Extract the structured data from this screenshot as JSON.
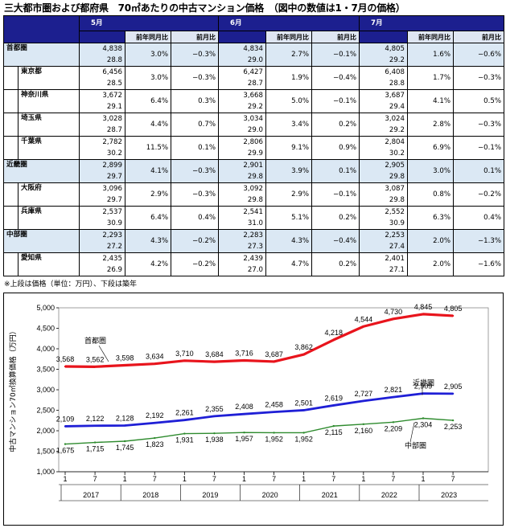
{
  "title": "三大都市圏および都府県　70㎡あたりの中古マンション価格　（図中の数値は1・7月の価格）",
  "note": "※上段は価格（単位：万円）、下段は築年",
  "table": {
    "months": [
      "5月",
      "6月",
      "7月"
    ],
    "subheaders": [
      "前年同月比",
      "前月比"
    ],
    "rows": [
      {
        "name": "首都圏",
        "group": true,
        "cells": [
          {
            "price": "4,838",
            "age": "28.8",
            "yoy": "3.0%",
            "mom": "−0.3%"
          },
          {
            "price": "4,834",
            "age": "29.0",
            "yoy": "2.7%",
            "mom": "−0.1%"
          },
          {
            "price": "4,805",
            "age": "29.2",
            "yoy": "1.6%",
            "mom": "−0.6%"
          }
        ]
      },
      {
        "name": "東京都",
        "group": false,
        "cells": [
          {
            "price": "6,456",
            "age": "28.5",
            "yoy": "3.0%",
            "mom": "−0.3%"
          },
          {
            "price": "6,427",
            "age": "28.7",
            "yoy": "1.9%",
            "mom": "−0.4%"
          },
          {
            "price": "6,408",
            "age": "28.8",
            "yoy": "1.7%",
            "mom": "−0.3%"
          }
        ]
      },
      {
        "name": "神奈川県",
        "group": false,
        "cells": [
          {
            "price": "3,672",
            "age": "29.1",
            "yoy": "6.4%",
            "mom": "0.3%"
          },
          {
            "price": "3,668",
            "age": "29.2",
            "yoy": "5.0%",
            "mom": "−0.1%"
          },
          {
            "price": "3,687",
            "age": "29.4",
            "yoy": "4.1%",
            "mom": "0.5%"
          }
        ]
      },
      {
        "name": "埼玉県",
        "group": false,
        "cells": [
          {
            "price": "3,028",
            "age": "28.7",
            "yoy": "4.4%",
            "mom": "0.7%"
          },
          {
            "price": "3,034",
            "age": "29.0",
            "yoy": "3.4%",
            "mom": "0.2%"
          },
          {
            "price": "3,024",
            "age": "29.2",
            "yoy": "2.8%",
            "mom": "−0.3%"
          }
        ]
      },
      {
        "name": "千葉県",
        "group": false,
        "cells": [
          {
            "price": "2,782",
            "age": "30.2",
            "yoy": "11.5%",
            "mom": "0.1%"
          },
          {
            "price": "2,806",
            "age": "29.9",
            "yoy": "9.1%",
            "mom": "0.9%"
          },
          {
            "price": "2,804",
            "age": "30.2",
            "yoy": "6.9%",
            "mom": "−0.1%"
          }
        ]
      },
      {
        "name": "近畿圏",
        "group": true,
        "cells": [
          {
            "price": "2,899",
            "age": "29.7",
            "yoy": "4.1%",
            "mom": "−0.3%"
          },
          {
            "price": "2,901",
            "age": "29.8",
            "yoy": "3.9%",
            "mom": "0.1%"
          },
          {
            "price": "2,905",
            "age": "29.8",
            "yoy": "3.0%",
            "mom": "0.1%"
          }
        ]
      },
      {
        "name": "大阪府",
        "group": false,
        "cells": [
          {
            "price": "3,096",
            "age": "29.7",
            "yoy": "2.9%",
            "mom": "−0.3%"
          },
          {
            "price": "3,092",
            "age": "29.8",
            "yoy": "2.9%",
            "mom": "−0.1%"
          },
          {
            "price": "3,087",
            "age": "29.8",
            "yoy": "0.8%",
            "mom": "−0.2%"
          }
        ]
      },
      {
        "name": "兵庫県",
        "group": false,
        "cells": [
          {
            "price": "2,537",
            "age": "30.9",
            "yoy": "6.4%",
            "mom": "0.4%"
          },
          {
            "price": "2,541",
            "age": "31.0",
            "yoy": "5.1%",
            "mom": "0.2%"
          },
          {
            "price": "2,552",
            "age": "30.9",
            "yoy": "6.3%",
            "mom": "0.4%"
          }
        ]
      },
      {
        "name": "中部圏",
        "group": true,
        "cells": [
          {
            "price": "2,293",
            "age": "27.2",
            "yoy": "4.3%",
            "mom": "−0.2%"
          },
          {
            "price": "2,283",
            "age": "27.3",
            "yoy": "4.3%",
            "mom": "−0.4%"
          },
          {
            "price": "2,253",
            "age": "27.4",
            "yoy": "2.0%",
            "mom": "−1.3%"
          }
        ]
      },
      {
        "name": "愛知県",
        "group": false,
        "cells": [
          {
            "price": "2,435",
            "age": "26.9",
            "yoy": "4.2%",
            "mom": "−0.2%"
          },
          {
            "price": "2,439",
            "age": "27.0",
            "yoy": "4.7%",
            "mom": "0.2%"
          },
          {
            "price": "2,401",
            "age": "27.1",
            "yoy": "2.0%",
            "mom": "−1.6%"
          }
        ]
      }
    ]
  },
  "chart_data": {
    "type": "line",
    "ylabel": "中古マンション70㎡換算価格（万円）",
    "ylim": [
      1000,
      5000
    ],
    "yticks": [
      "1,000",
      "1,500",
      "2,000",
      "2,500",
      "3,000",
      "3,500",
      "4,000",
      "4,500",
      "5,000"
    ],
    "month_ticks": [
      "1",
      "7",
      "1",
      "7",
      "1",
      "7",
      "1",
      "7",
      "1",
      "7",
      "1",
      "7",
      "1",
      "7"
    ],
    "years": [
      "2017",
      "2018",
      "2019",
      "2020",
      "2021",
      "2022",
      "2023"
    ],
    "x": [
      "2017-01",
      "2017-07",
      "2018-01",
      "2018-07",
      "2019-01",
      "2019-07",
      "2020-01",
      "2020-07",
      "2021-01",
      "2021-07",
      "2022-01",
      "2022-07",
      "2023-01",
      "2023-07"
    ],
    "series": [
      {
        "name": "首都圏",
        "color": "#e8141c",
        "values": [
          3568,
          3562,
          3598,
          3634,
          3710,
          3684,
          3716,
          3687,
          3862,
          4218,
          4544,
          4730,
          4845,
          4805
        ],
        "labels": [
          "3,568",
          "3,562",
          "3,598",
          "3,634",
          "3,710",
          "3,684",
          "3,716",
          "3,687",
          "3,862",
          "4,218",
          "4,544",
          "4,730",
          "4,845",
          "4,805"
        ]
      },
      {
        "name": "近畿圏",
        "color": "#1f1fd6",
        "values": [
          2109,
          2122,
          2128,
          2192,
          2261,
          2355,
          2408,
          2458,
          2501,
          2619,
          2727,
          2821,
          2909,
          2905
        ],
        "labels": [
          "2,109",
          "2,122",
          "2,128",
          "2,192",
          "2,261",
          "2,355",
          "2,408",
          "2,458",
          "2,501",
          "2,619",
          "2,727",
          "2,821",
          "2,909",
          "2,905"
        ]
      },
      {
        "name": "中部圏",
        "color": "#2e8b2e",
        "values": [
          1675,
          1715,
          1745,
          1823,
          1931,
          1938,
          1957,
          1952,
          1952,
          2115,
          2160,
          2209,
          2304,
          2253
        ],
        "labels": [
          "1,675",
          "1,715",
          "1,745",
          "1,823",
          "1,931",
          "1,938",
          "1,957",
          "1,952",
          "1,952",
          "2,115",
          "2,160",
          "2,209",
          "2,304",
          "2,253"
        ]
      }
    ]
  }
}
